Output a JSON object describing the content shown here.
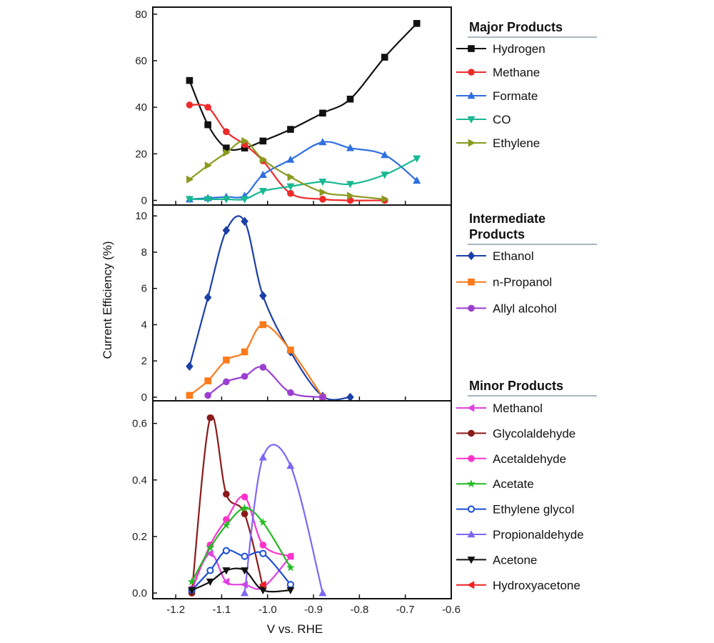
{
  "chart_data": {
    "type": "line",
    "xlabel": "V vs. RHE",
    "ylabel": "Current Efficiency (%)",
    "xlim": [
      -1.25,
      -0.6
    ],
    "xticks": [
      -1.2,
      -1.1,
      -1.0,
      -0.9,
      -0.8,
      -0.7,
      -0.6
    ],
    "xtick_labels": [
      "-1.2",
      "-1.1",
      "-1.0",
      "-0.9",
      "-0.8",
      "-0.7",
      "-0.6"
    ],
    "panels": [
      {
        "name": "Major Products",
        "heading": [
          "Major Products"
        ],
        "ylim": [
          -2,
          83
        ],
        "yticks": [
          0,
          20,
          40,
          60,
          80
        ],
        "ytick_labels": [
          "0",
          "20",
          "40",
          "60",
          "80"
        ],
        "series": [
          {
            "name": "Hydrogen",
            "color": "#111111",
            "marker": "square",
            "points": [
              [
                -1.17,
                51.5
              ],
              [
                -1.13,
                32.5
              ],
              [
                -1.09,
                22.5
              ],
              [
                -1.05,
                22.5
              ],
              [
                -1.01,
                25.5
              ],
              [
                -0.95,
                30.5
              ],
              [
                -0.88,
                37.5
              ],
              [
                -0.82,
                43.5
              ],
              [
                -0.745,
                61.5
              ],
              [
                -0.675,
                76
              ]
            ]
          },
          {
            "name": "Methane",
            "color": "#ee2a2a",
            "marker": "circle",
            "points": [
              [
                -1.17,
                41
              ],
              [
                -1.13,
                40
              ],
              [
                -1.09,
                29.5
              ],
              [
                -1.05,
                24
              ],
              [
                -1.01,
                17
              ],
              [
                -0.95,
                3
              ],
              [
                -0.88,
                0.5
              ],
              [
                -0.82,
                0
              ],
              [
                -0.745,
                0
              ]
            ]
          },
          {
            "name": "Formate",
            "color": "#2f6fe0",
            "marker": "triangle-up",
            "points": [
              [
                -1.17,
                0.5
              ],
              [
                -1.13,
                1
              ],
              [
                -1.09,
                1.5
              ],
              [
                -1.05,
                2
              ],
              [
                -1.01,
                11
              ],
              [
                -0.95,
                17.5
              ],
              [
                -0.88,
                25
              ],
              [
                -0.82,
                22.5
              ],
              [
                -0.745,
                19.5
              ],
              [
                -0.675,
                8.5
              ]
            ]
          },
          {
            "name": "CO",
            "color": "#18b892",
            "marker": "triangle-down",
            "points": [
              [
                -1.17,
                0.5
              ],
              [
                -1.13,
                0.5
              ],
              [
                -1.09,
                0.5
              ],
              [
                -1.05,
                0.5
              ],
              [
                -1.01,
                4
              ],
              [
                -0.95,
                6
              ],
              [
                -0.88,
                8
              ],
              [
                -0.82,
                7
              ],
              [
                -0.745,
                11
              ],
              [
                -0.675,
                18
              ]
            ]
          },
          {
            "name": "Ethylene",
            "color": "#8a9a1f",
            "marker": "triangle-right",
            "points": [
              [
                -1.17,
                9
              ],
              [
                -1.13,
                15
              ],
              [
                -1.09,
                20.5
              ],
              [
                -1.05,
                25.5
              ],
              [
                -1.01,
                17.5
              ],
              [
                -0.95,
                10
              ],
              [
                -0.88,
                3.5
              ],
              [
                -0.82,
                2
              ],
              [
                -0.745,
                0.5
              ]
            ]
          }
        ]
      },
      {
        "name": "Intermediate Products",
        "heading": [
          "Intermediate",
          "Products"
        ],
        "ylim": [
          -0.2,
          10.6
        ],
        "yticks": [
          0,
          2,
          4,
          6,
          8,
          10
        ],
        "ytick_labels": [
          "0",
          "2",
          "4",
          "6",
          "8",
          "10"
        ],
        "series": [
          {
            "name": "Ethanol",
            "color": "#1c3fa8",
            "marker": "diamond",
            "points": [
              [
                -1.17,
                1.7
              ],
              [
                -1.13,
                5.5
              ],
              [
                -1.09,
                9.2
              ],
              [
                -1.05,
                9.7
              ],
              [
                -1.01,
                5.6
              ],
              [
                -0.95,
                2.5
              ],
              [
                -0.88,
                0.05
              ],
              [
                -0.82,
                0
              ]
            ]
          },
          {
            "name": "n-Propanol",
            "color": "#ff7a1a",
            "marker": "square",
            "points": [
              [
                -1.17,
                0.1
              ],
              [
                -1.13,
                0.9
              ],
              [
                -1.09,
                2.05
              ],
              [
                -1.05,
                2.5
              ],
              [
                -1.01,
                4.0
              ],
              [
                -0.95,
                2.6
              ],
              [
                -0.88,
                0
              ]
            ]
          },
          {
            "name": "Allyl alcohol",
            "color": "#9b3fd0",
            "marker": "circle",
            "points": [
              [
                -1.13,
                0.1
              ],
              [
                -1.09,
                0.85
              ],
              [
                -1.05,
                1.15
              ],
              [
                -1.01,
                1.65
              ],
              [
                -0.95,
                0.25
              ],
              [
                -0.88,
                0
              ]
            ]
          }
        ]
      },
      {
        "name": "Minor Products",
        "heading": [
          "Minor Products"
        ],
        "ylim": [
          -0.02,
          0.68
        ],
        "yticks": [
          0.0,
          0.2,
          0.4,
          0.6
        ],
        "ytick_labels": [
          "0.0",
          "0.2",
          "0.4",
          "0.6"
        ],
        "series": [
          {
            "name": "Methanol",
            "color": "#e040e0",
            "marker": "triangle-left",
            "points": [
              [
                -1.165,
                0.02
              ],
              [
                -1.125,
                0.14
              ],
              [
                -1.09,
                0.04
              ],
              [
                -1.05,
                0.03
              ],
              [
                -1.01,
                0.02
              ],
              [
                -0.95,
                0.13
              ]
            ]
          },
          {
            "name": "Glycolaldehyde",
            "color": "#8b1a1a",
            "marker": "circle",
            "points": [
              [
                -1.165,
                0.0
              ],
              [
                -1.125,
                0.62
              ],
              [
                -1.09,
                0.35
              ],
              [
                -1.05,
                0.28
              ],
              [
                -1.01,
                0.02
              ]
            ]
          },
          {
            "name": "Acetaldehyde",
            "color": "#ff33cc",
            "marker": "circle",
            "points": [
              [
                -1.165,
                0.01
              ],
              [
                -1.125,
                0.17
              ],
              [
                -1.09,
                0.26
              ],
              [
                -1.05,
                0.34
              ],
              [
                -1.01,
                0.17
              ],
              [
                -0.95,
                0.13
              ]
            ]
          },
          {
            "name": "Acetate",
            "color": "#22bb22",
            "marker": "star",
            "points": [
              [
                -1.165,
                0.04
              ],
              [
                -1.125,
                0.16
              ],
              [
                -1.09,
                0.24
              ],
              [
                -1.05,
                0.3
              ],
              [
                -1.01,
                0.25
              ],
              [
                -0.95,
                0.09
              ]
            ]
          },
          {
            "name": "Ethylene glycol",
            "color": "#1a4fd6",
            "marker": "open-circle",
            "points": [
              [
                -1.165,
                0.01
              ],
              [
                -1.125,
                0.08
              ],
              [
                -1.09,
                0.15
              ],
              [
                -1.05,
                0.13
              ],
              [
                -1.01,
                0.14
              ],
              [
                -0.95,
                0.03
              ]
            ]
          },
          {
            "name": "Propionaldehyde",
            "color": "#7f66f5",
            "marker": "triangle-up",
            "points": [
              [
                -1.05,
                0.0
              ],
              [
                -1.01,
                0.48
              ],
              [
                -0.95,
                0.45
              ],
              [
                -0.88,
                0.0
              ]
            ]
          },
          {
            "name": "Acetone",
            "color": "#111111",
            "marker": "triangle-down",
            "points": [
              [
                -1.165,
                0.01
              ],
              [
                -1.125,
                0.04
              ],
              [
                -1.09,
                0.08
              ],
              [
                -1.05,
                0.08
              ],
              [
                -1.01,
                0.01
              ],
              [
                -0.95,
                0.01
              ]
            ]
          },
          {
            "name": "Hydroxyacetone",
            "color": "#ee2222",
            "marker": "triangle-left",
            "points": [
              [
                -1.01,
                0.03
              ]
            ]
          }
        ]
      }
    ]
  }
}
